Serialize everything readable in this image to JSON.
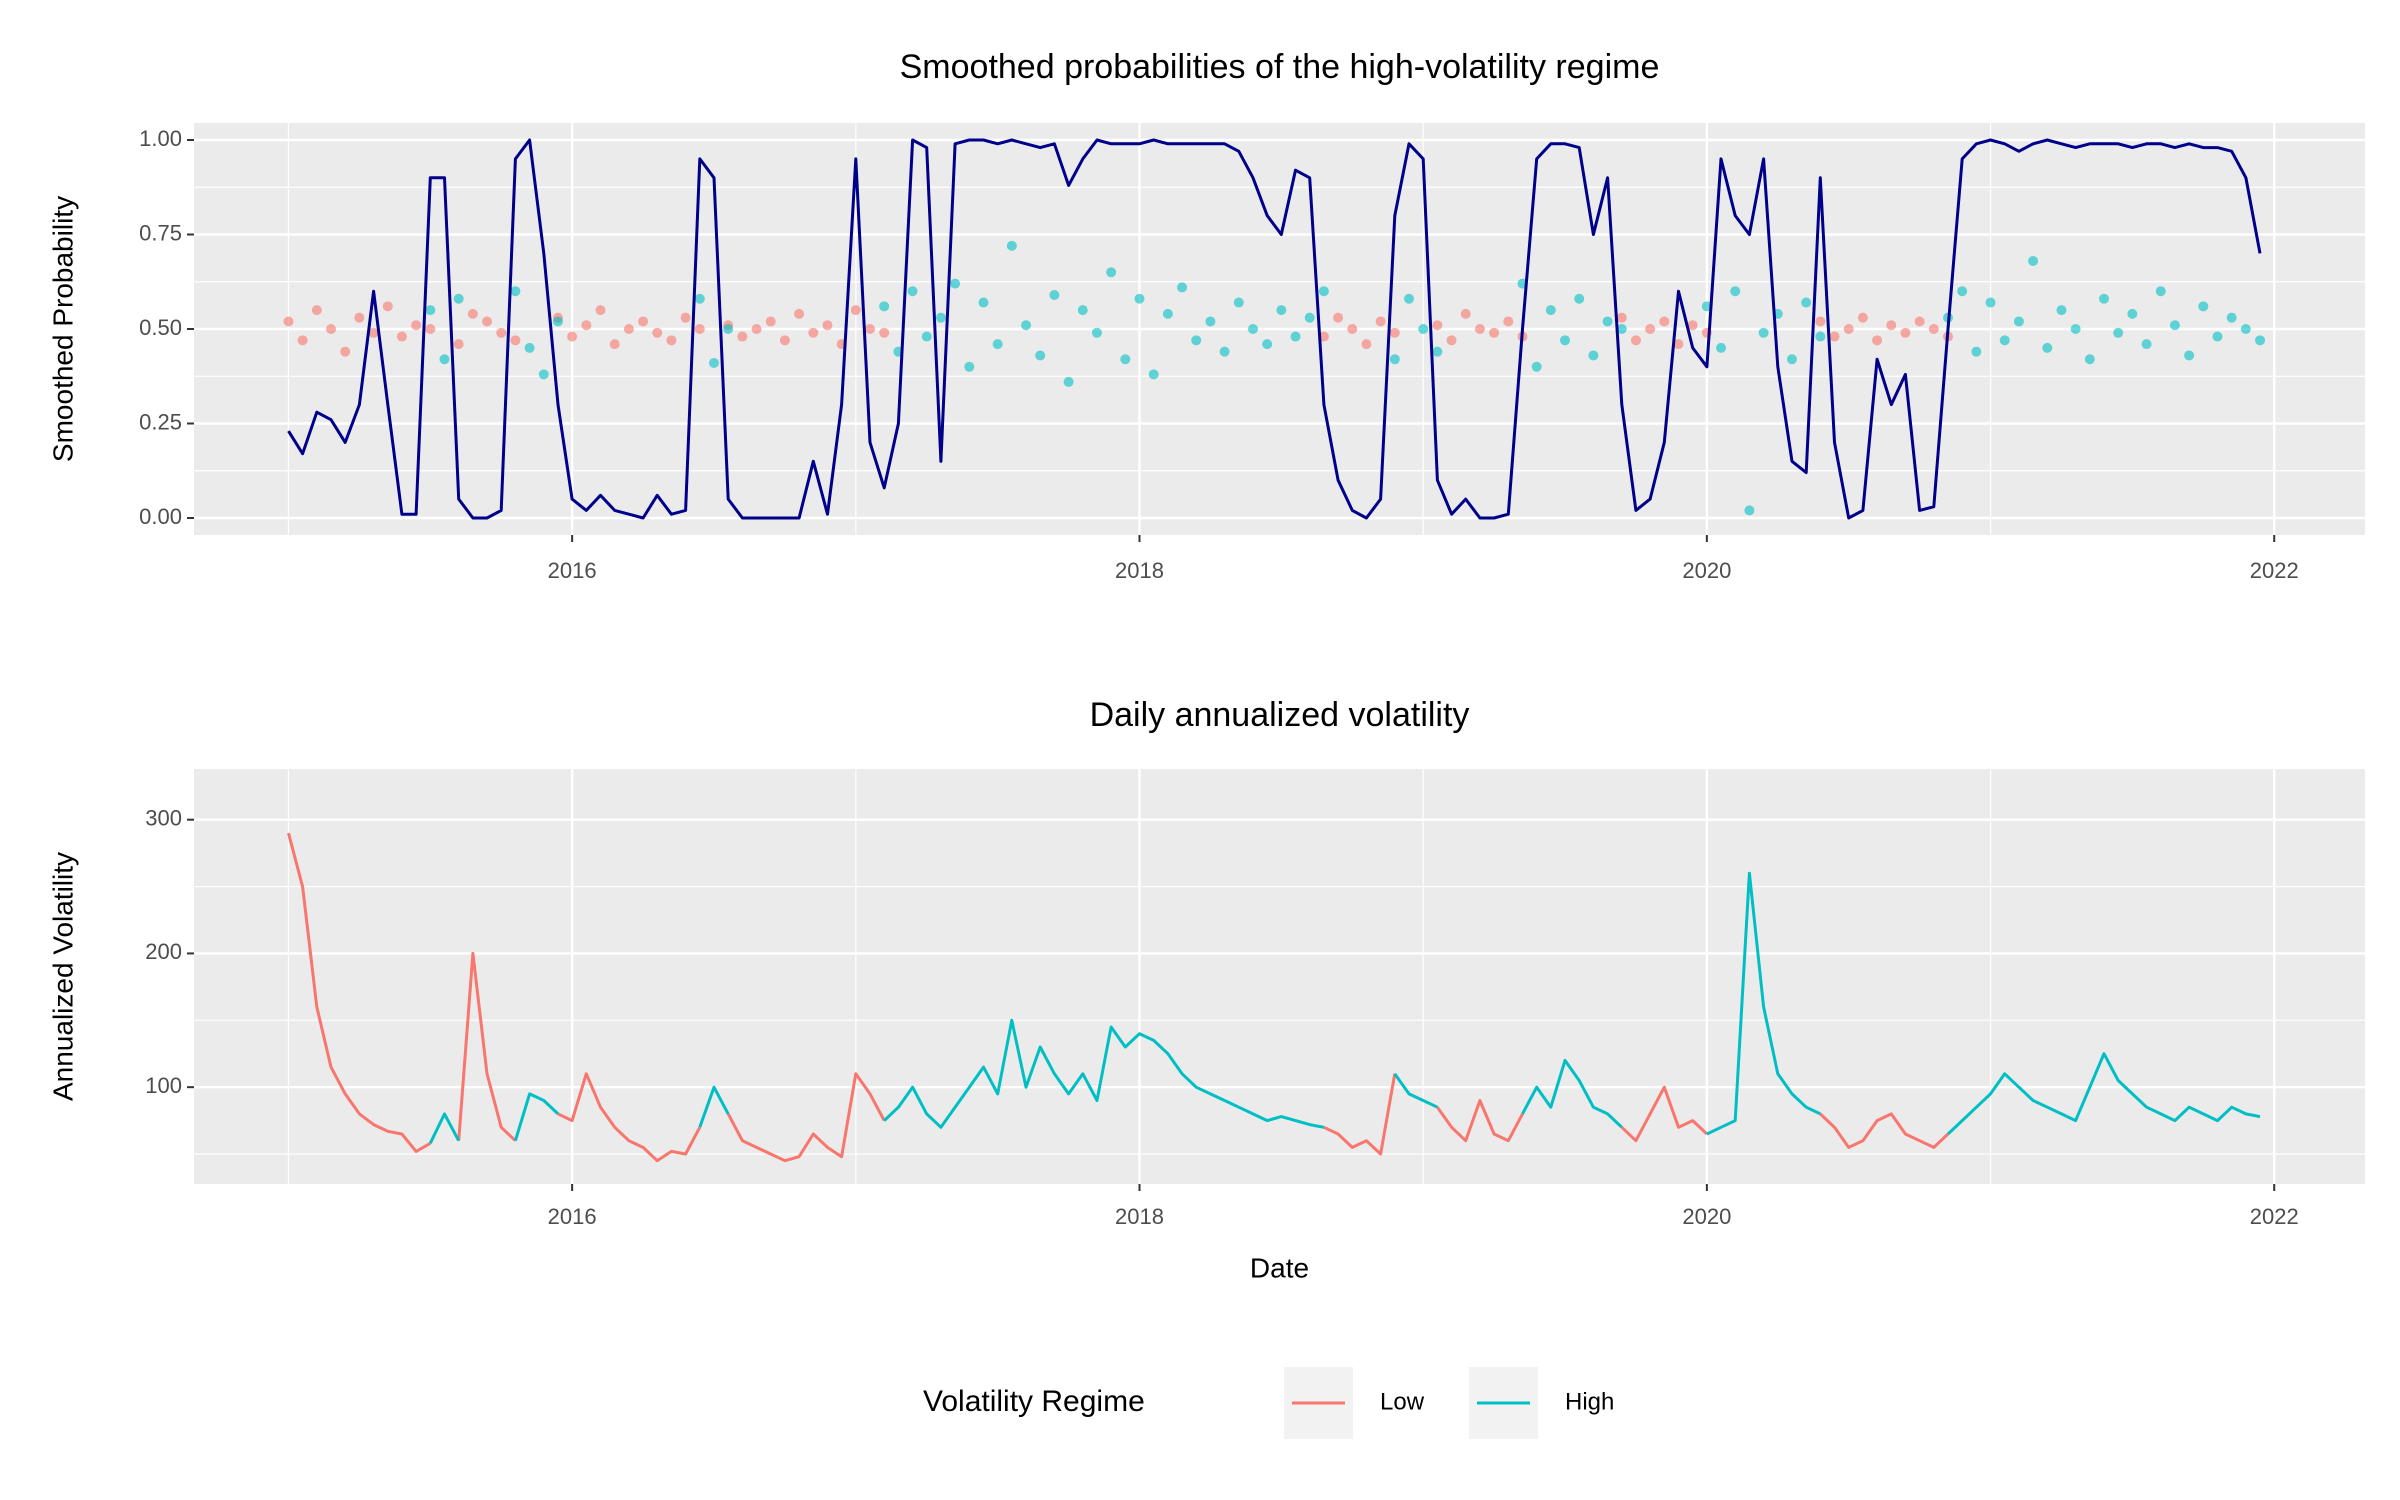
{
  "chart_data": [
    {
      "type": "line",
      "title": "Smoothed probabilities of the high-volatility regime",
      "ylabel": "Smoothed Probability",
      "x": [
        2015,
        2015.05,
        2015.1,
        2015.15,
        2015.2,
        2015.25,
        2015.3,
        2015.35,
        2015.4,
        2015.45,
        2015.5,
        2015.55,
        2015.6,
        2015.65,
        2015.7,
        2015.75,
        2015.8,
        2015.85,
        2015.9,
        2015.95,
        2016,
        2016.05,
        2016.1,
        2016.15,
        2016.2,
        2016.25,
        2016.3,
        2016.35,
        2016.4,
        2016.45,
        2016.5,
        2016.55,
        2016.6,
        2016.65,
        2016.7,
        2016.75,
        2016.8,
        2016.85,
        2016.9,
        2016.95,
        2017,
        2017.05,
        2017.1,
        2017.15,
        2017.2,
        2017.25,
        2017.3,
        2017.35,
        2017.4,
        2017.45,
        2017.5,
        2017.55,
        2017.6,
        2017.65,
        2017.7,
        2017.75,
        2017.8,
        2017.85,
        2017.9,
        2017.95,
        2018,
        2018.05,
        2018.1,
        2018.15,
        2018.2,
        2018.25,
        2018.3,
        2018.35,
        2018.4,
        2018.45,
        2018.5,
        2018.55,
        2018.6,
        2018.65,
        2018.7,
        2018.75,
        2018.8,
        2018.85,
        2018.9,
        2018.95,
        2019,
        2019.05,
        2019.1,
        2019.15,
        2019.2,
        2019.25,
        2019.3,
        2019.35,
        2019.4,
        2019.45,
        2019.5,
        2019.55,
        2019.6,
        2019.65,
        2019.7,
        2019.75,
        2019.8,
        2019.85,
        2019.9,
        2019.95,
        2020,
        2020.05,
        2020.1,
        2020.15,
        2020.2,
        2020.25,
        2020.3,
        2020.35,
        2020.4,
        2020.45,
        2020.5,
        2020.55,
        2020.6,
        2020.65,
        2020.7,
        2020.75,
        2020.8,
        2020.85,
        2020.9,
        2020.95,
        2021,
        2021.05,
        2021.1,
        2021.15,
        2021.2,
        2021.25,
        2021.3,
        2021.35,
        2021.4,
        2021.45,
        2021.5,
        2021.55,
        2021.6,
        2021.65,
        2021.7,
        2021.75,
        2021.8,
        2021.85,
        2021.9,
        2021.95
      ],
      "xlim": [
        2014.667,
        2022.32
      ],
      "xticks": [
        2016,
        2018,
        2020,
        2022
      ],
      "xminor": [
        2015,
        2017,
        2019,
        2021
      ],
      "ylim": [
        -0.045,
        1.045
      ],
      "yticks": [
        {
          "value": 0,
          "label": "0.00"
        },
        {
          "value": 0.25,
          "label": "0.25"
        },
        {
          "value": 0.5,
          "label": "0.50"
        },
        {
          "value": 0.75,
          "label": "0.75"
        },
        {
          "value": 1,
          "label": "1.00"
        }
      ],
      "yminor": [
        0.125,
        0.375,
        0.625,
        0.875
      ],
      "grid": true,
      "series": [
        {
          "type": "scatter",
          "color": "#F8766D",
          "values": [
            0.52,
            0.47,
            0.55,
            0.5,
            0.44,
            0.53,
            0.49,
            0.56,
            0.48,
            0.51,
            0.5,
            null,
            0.46,
            0.54,
            0.52,
            0.49,
            0.47,
            null,
            null,
            0.53,
            0.48,
            0.51,
            0.55,
            0.46,
            0.5,
            0.52,
            0.49,
            0.47,
            0.53,
            0.5,
            null,
            0.51,
            0.48,
            0.5,
            0.52,
            0.47,
            0.54,
            0.49,
            0.51,
            0.46,
            0.55,
            0.5,
            0.49,
            null,
            null,
            null,
            null,
            null,
            null,
            null,
            null,
            null,
            null,
            null,
            null,
            null,
            null,
            null,
            null,
            null,
            null,
            null,
            null,
            null,
            null,
            null,
            null,
            null,
            null,
            null,
            null,
            null,
            null,
            0.48,
            0.53,
            0.5,
            0.46,
            0.52,
            0.49,
            null,
            null,
            0.51,
            0.47,
            0.54,
            0.5,
            0.49,
            0.52,
            0.48,
            null,
            null,
            null,
            null,
            null,
            null,
            0.53,
            0.47,
            0.5,
            0.52,
            0.46,
            0.51,
            0.49,
            null,
            null,
            null,
            null,
            null,
            null,
            null,
            0.52,
            0.48,
            0.5,
            0.53,
            0.47,
            0.51,
            0.49,
            0.52,
            0.5,
            0.48,
            null,
            null,
            null,
            null,
            null,
            null,
            null,
            null,
            null,
            null,
            null,
            null,
            null,
            null,
            null,
            null,
            null,
            null,
            null,
            null,
            null,
            null
          ]
        },
        {
          "type": "scatter",
          "color": "#00BFC4",
          "values": [
            null,
            null,
            null,
            null,
            null,
            null,
            null,
            null,
            null,
            null,
            0.55,
            0.42,
            0.58,
            null,
            null,
            null,
            0.6,
            0.45,
            0.38,
            0.52,
            null,
            null,
            null,
            null,
            null,
            null,
            null,
            null,
            null,
            0.58,
            0.41,
            0.5,
            null,
            null,
            null,
            null,
            null,
            null,
            null,
            null,
            null,
            null,
            0.56,
            0.44,
            0.6,
            0.48,
            0.53,
            0.62,
            0.4,
            0.57,
            0.46,
            0.72,
            0.51,
            0.43,
            0.59,
            0.36,
            0.55,
            0.49,
            0.65,
            0.42,
            0.58,
            0.38,
            0.54,
            0.61,
            0.47,
            0.52,
            0.44,
            0.57,
            0.5,
            0.46,
            0.55,
            0.48,
            0.53,
            0.6,
            null,
            null,
            null,
            null,
            0.42,
            0.58,
            0.5,
            0.44,
            null,
            null,
            null,
            null,
            null,
            0.62,
            0.4,
            0.55,
            0.47,
            0.58,
            0.43,
            0.52,
            0.5,
            null,
            null,
            null,
            null,
            null,
            0.56,
            0.45,
            0.6,
            0.02,
            0.49,
            0.54,
            0.42,
            0.57,
            0.48,
            null,
            null,
            null,
            null,
            null,
            null,
            null,
            null,
            0.53,
            0.6,
            0.44,
            0.57,
            0.47,
            0.52,
            0.68,
            0.45,
            0.55,
            0.5,
            0.42,
            0.58,
            0.49,
            0.54,
            0.46,
            0.6,
            0.51,
            0.43,
            0.56,
            0.48,
            0.53,
            0.5,
            0.47
          ]
        },
        {
          "type": "line",
          "color": "#00008B",
          "values": [
            0.23,
            0.17,
            0.28,
            0.26,
            0.2,
            0.3,
            0.6,
            0.3,
            0.01,
            0.01,
            0.9,
            0.9,
            0.05,
            0,
            0,
            0.02,
            0.95,
            1,
            0.7,
            0.3,
            0.05,
            0.02,
            0.06,
            0.02,
            0.01,
            0,
            0.06,
            0.01,
            0.02,
            0.95,
            0.9,
            0.05,
            0,
            0,
            0,
            0,
            0,
            0.15,
            0.01,
            0.3,
            0.95,
            0.2,
            0.08,
            0.25,
            1,
            0.98,
            0.15,
            0.99,
            1,
            1,
            0.99,
            1,
            0.99,
            0.98,
            0.99,
            0.88,
            0.95,
            1,
            0.99,
            0.99,
            0.99,
            1,
            0.99,
            0.99,
            0.99,
            0.99,
            0.99,
            0.97,
            0.9,
            0.8,
            0.75,
            0.92,
            0.9,
            0.3,
            0.1,
            0.02,
            0,
            0.05,
            0.8,
            0.99,
            0.95,
            0.1,
            0.01,
            0.05,
            0,
            0,
            0.01,
            0.5,
            0.95,
            0.99,
            0.99,
            0.98,
            0.75,
            0.9,
            0.3,
            0.02,
            0.05,
            0.2,
            0.6,
            0.45,
            0.4,
            0.95,
            0.8,
            0.75,
            0.95,
            0.4,
            0.15,
            0.12,
            0.9,
            0.2,
            0,
            0.02,
            0.42,
            0.3,
            0.38,
            0.02,
            0.03,
            0.5,
            0.95,
            0.99,
            1,
            0.99,
            0.97,
            0.99,
            1,
            0.99,
            0.98,
            0.99,
            0.99,
            0.99,
            0.98,
            0.99,
            0.99,
            0.98,
            0.99,
            0.98,
            0.98,
            0.97,
            0.9,
            0.7
          ]
        }
      ]
    },
    {
      "type": "line",
      "title": "Daily annualized volatility",
      "xlabel": "Date",
      "ylabel": "Annualized Volatility",
      "x": [
        2015,
        2015.05,
        2015.1,
        2015.15,
        2015.2,
        2015.25,
        2015.3,
        2015.35,
        2015.4,
        2015.45,
        2015.5,
        2015.55,
        2015.6,
        2015.65,
        2015.7,
        2015.75,
        2015.8,
        2015.85,
        2015.9,
        2015.95,
        2016,
        2016.05,
        2016.1,
        2016.15,
        2016.2,
        2016.25,
        2016.3,
        2016.35,
        2016.4,
        2016.45,
        2016.5,
        2016.55,
        2016.6,
        2016.65,
        2016.7,
        2016.75,
        2016.8,
        2016.85,
        2016.9,
        2016.95,
        2017,
        2017.05,
        2017.1,
        2017.15,
        2017.2,
        2017.25,
        2017.3,
        2017.35,
        2017.4,
        2017.45,
        2017.5,
        2017.55,
        2017.6,
        2017.65,
        2017.7,
        2017.75,
        2017.8,
        2017.85,
        2017.9,
        2017.95,
        2018,
        2018.05,
        2018.1,
        2018.15,
        2018.2,
        2018.25,
        2018.3,
        2018.35,
        2018.4,
        2018.45,
        2018.5,
        2018.55,
        2018.6,
        2018.65,
        2018.7,
        2018.75,
        2018.8,
        2018.85,
        2018.9,
        2018.95,
        2019,
        2019.05,
        2019.1,
        2019.15,
        2019.2,
        2019.25,
        2019.3,
        2019.35,
        2019.4,
        2019.45,
        2019.5,
        2019.55,
        2019.6,
        2019.65,
        2019.7,
        2019.75,
        2019.8,
        2019.85,
        2019.9,
        2019.95,
        2020,
        2020.05,
        2020.1,
        2020.15,
        2020.2,
        2020.25,
        2020.3,
        2020.35,
        2020.4,
        2020.45,
        2020.5,
        2020.55,
        2020.6,
        2020.65,
        2020.7,
        2020.75,
        2020.8,
        2020.85,
        2020.9,
        2020.95,
        2021,
        2021.05,
        2021.1,
        2021.15,
        2021.2,
        2021.25,
        2021.3,
        2021.35,
        2021.4,
        2021.45,
        2021.5,
        2021.55,
        2021.6,
        2021.65,
        2021.7,
        2021.75,
        2021.8,
        2021.85,
        2021.9,
        2021.95
      ],
      "xlim": [
        2014.667,
        2022.32
      ],
      "xticks": [
        2016,
        2018,
        2020,
        2022
      ],
      "xminor": [
        2015,
        2017,
        2019,
        2021
      ],
      "ylim": [
        27.6,
        337.9
      ],
      "yticks": [
        100,
        200,
        300
      ],
      "yminor": [
        50,
        150,
        250
      ],
      "grid": true,
      "legend": {
        "title": "Volatility Regime",
        "position": "bottom"
      },
      "series": [
        {
          "name": "Low",
          "color": "#F8766D",
          "values": [
            290,
            250,
            160,
            115,
            95,
            80,
            72,
            67,
            65,
            52,
            58,
            null,
            60,
            200,
            110,
            70,
            60,
            null,
            null,
            80,
            75,
            110,
            85,
            70,
            60,
            55,
            45,
            52,
            50,
            70,
            null,
            80,
            60,
            55,
            50,
            45,
            48,
            65,
            55,
            48,
            110,
            95,
            75,
            null,
            null,
            null,
            null,
            null,
            null,
            null,
            null,
            null,
            null,
            null,
            null,
            null,
            null,
            null,
            null,
            null,
            null,
            null,
            null,
            null,
            null,
            null,
            null,
            null,
            null,
            null,
            null,
            null,
            null,
            70,
            65,
            55,
            60,
            50,
            110,
            null,
            null,
            85,
            70,
            60,
            90,
            65,
            60,
            80,
            null,
            null,
            null,
            null,
            null,
            null,
            70,
            60,
            80,
            100,
            70,
            75,
            65,
            null,
            null,
            null,
            null,
            null,
            null,
            null,
            80,
            70,
            55,
            60,
            75,
            80,
            65,
            60,
            55,
            65,
            null,
            null,
            null,
            null,
            null,
            null,
            null,
            null,
            null,
            null,
            null,
            null,
            null,
            null,
            null,
            null,
            null,
            null,
            null,
            null,
            null,
            null
          ]
        },
        {
          "name": "High",
          "color": "#00BFC4",
          "values": [
            null,
            null,
            null,
            null,
            null,
            null,
            null,
            null,
            null,
            null,
            58,
            80,
            60,
            null,
            null,
            null,
            60,
            95,
            90,
            80,
            null,
            null,
            null,
            null,
            null,
            null,
            null,
            null,
            null,
            70,
            100,
            80,
            null,
            null,
            null,
            null,
            null,
            null,
            null,
            null,
            null,
            null,
            75,
            85,
            100,
            80,
            70,
            85,
            100,
            115,
            95,
            150,
            100,
            130,
            110,
            95,
            110,
            90,
            145,
            130,
            140,
            135,
            125,
            110,
            100,
            95,
            90,
            85,
            80,
            75,
            78,
            75,
            72,
            70,
            null,
            null,
            null,
            null,
            110,
            95,
            90,
            85,
            null,
            null,
            null,
            null,
            null,
            80,
            100,
            85,
            120,
            105,
            85,
            80,
            70,
            null,
            null,
            null,
            null,
            null,
            65,
            70,
            75,
            260,
            160,
            110,
            95,
            85,
            80,
            null,
            null,
            null,
            null,
            null,
            null,
            null,
            null,
            65,
            75,
            85,
            95,
            110,
            100,
            90,
            85,
            80,
            75,
            100,
            125,
            105,
            95,
            85,
            80,
            75,
            85,
            80,
            75,
            85,
            80,
            78
          ]
        }
      ]
    }
  ]
}
